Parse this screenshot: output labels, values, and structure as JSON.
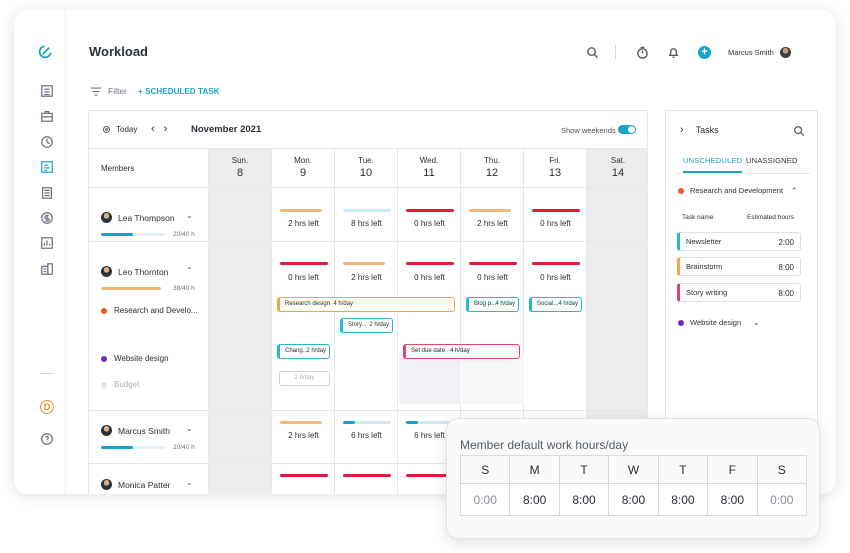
{
  "app": {
    "title": "Workload"
  },
  "header": {
    "user_name": "Marcus Smith"
  },
  "toolbar": {
    "filter_label": "Filter",
    "scheduled_task_label": "+ SCHEDULED TASK"
  },
  "calendar": {
    "today_label": "Today",
    "month": "November 2021",
    "show_weekends_label": "Show weekends",
    "show_weekends_on": true,
    "members_header": "Members",
    "days": [
      {
        "name": "Sun.",
        "date": "8"
      },
      {
        "name": "Mon.",
        "date": "9"
      },
      {
        "name": "Tue.",
        "date": "10"
      },
      {
        "name": "Wed.",
        "date": "11"
      },
      {
        "name": "Thu.",
        "date": "12"
      },
      {
        "name": "Fri.",
        "date": "13"
      },
      {
        "name": "Sat.",
        "date": "14"
      }
    ],
    "members": [
      {
        "name": "Lea Thompson",
        "hours": "20/40 h",
        "load": [
          "",
          "2 hrs left",
          "8 hrs left",
          "0 hrs left",
          "2 hrs left",
          "0 hrs left",
          ""
        ]
      },
      {
        "name": "Leo Thornton",
        "hours": "38/40 h",
        "load": [
          "",
          "0 hrs left",
          "2 hrs left",
          "0 hrs left",
          "0 hrs left",
          "0 hrs left",
          ""
        ],
        "projects": [
          "Research and Develo...",
          "Website design",
          "Budget"
        ]
      },
      {
        "name": "Marcus Smith",
        "hours": "20/40 h",
        "load": [
          "",
          "2 hrs left",
          "6 hrs left",
          "6 hrs left",
          "",
          "",
          ""
        ]
      },
      {
        "name": "Monica Patter"
      }
    ],
    "tasks": {
      "research_design": {
        "name": "Research design",
        "rate": "4 h/day"
      },
      "blog": {
        "name": "Blog p...",
        "rate": "4 h/day"
      },
      "social": {
        "name": "Social...",
        "rate": "4 h/day"
      },
      "story": {
        "name": "Story...",
        "rate": "2 h/day"
      },
      "change": {
        "name": "Chang...",
        "rate": "2 h/day"
      },
      "set_due": {
        "name": "Set due date",
        "rate": "4 h/day"
      },
      "budget_ghost": {
        "rate": "2 h/day"
      }
    }
  },
  "tasks_panel": {
    "title": "Tasks",
    "tab_unscheduled": "UNSCHEDULED",
    "tab_unassigned": "UNASSIGNED",
    "group1": "Research and Development",
    "col_task": "Task name",
    "col_hours": "Estimated hours",
    "items": [
      {
        "name": "Newsletter",
        "hours": "2:00"
      },
      {
        "name": "Brainstorm",
        "hours": "8:00"
      },
      {
        "name": "Story writing",
        "hours": "8:00"
      }
    ],
    "group2": "Website design"
  },
  "work_hours": {
    "title": "Member default work hours/day",
    "days": [
      "S",
      "M",
      "T",
      "W",
      "T",
      "F",
      "S"
    ],
    "values": [
      "0:00",
      "8:00",
      "8:00",
      "8:00",
      "8:00",
      "8:00",
      "0:00"
    ]
  },
  "colors": {
    "accent": "#1aa3c9",
    "red": "#e21a3c",
    "orange": "#f3a54a",
    "purple": "#6a2fb8",
    "research": "#f05a1a"
  },
  "icons": [
    "logo-icon",
    "list-icon",
    "briefcase-icon",
    "clock-icon",
    "workload-icon",
    "document-icon",
    "dollar-icon",
    "chart-icon",
    "building-icon",
    "help-icon",
    "search-icon",
    "timer-icon",
    "bell-icon",
    "plus-icon",
    "filter-icon"
  ]
}
